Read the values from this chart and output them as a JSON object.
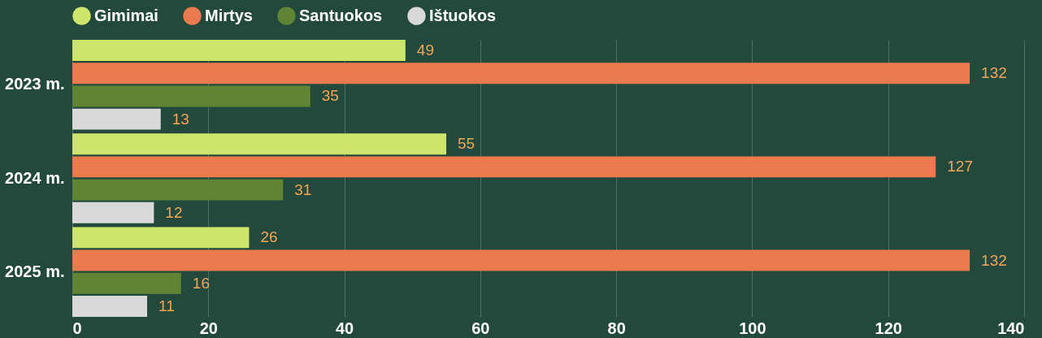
{
  "chart_data": {
    "type": "bar",
    "orientation": "horizontal",
    "categories": [
      "2023 m.",
      "2024 m.",
      "2025 m."
    ],
    "series": [
      {
        "name": "Gimimai",
        "color": "#cde56a",
        "values": [
          49,
          55,
          26
        ]
      },
      {
        "name": "Mirtys",
        "color": "#ec7a4f",
        "values": [
          132,
          127,
          132
        ]
      },
      {
        "name": "Santuokos",
        "color": "#5f8534",
        "values": [
          35,
          31,
          16
        ]
      },
      {
        "name": "Ištuokos",
        "color": "#d9d9d9",
        "values": [
          13,
          12,
          11
        ]
      }
    ],
    "xlim": [
      0,
      140
    ],
    "xticks": [
      0,
      20,
      40,
      60,
      80,
      100,
      120,
      140
    ],
    "grid": "x",
    "legend": "top",
    "data_labels": true
  }
}
